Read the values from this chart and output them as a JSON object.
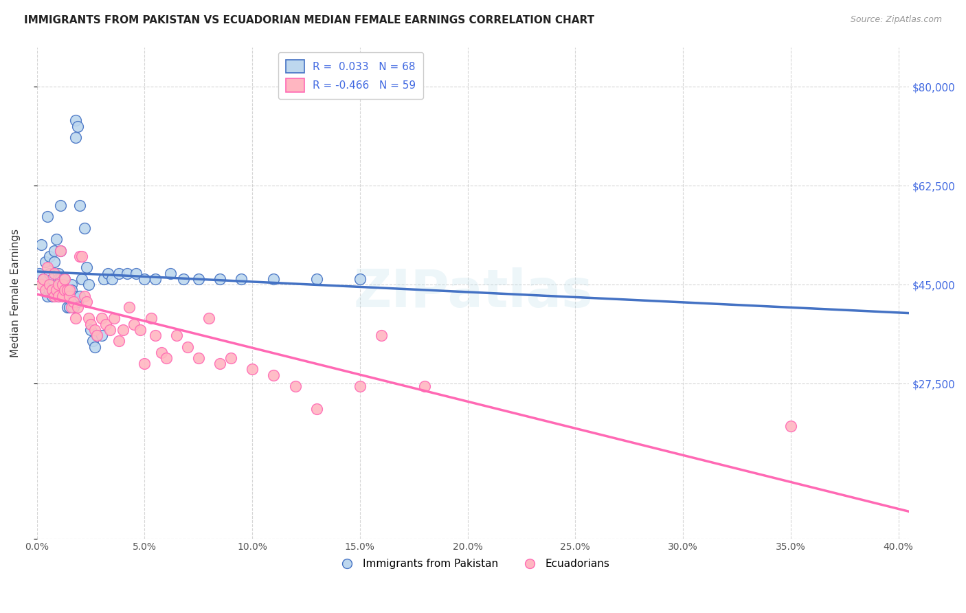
{
  "title": "IMMIGRANTS FROM PAKISTAN VS ECUADORIAN MEDIAN FEMALE EARNINGS CORRELATION CHART",
  "source": "Source: ZipAtlas.com",
  "ylabel": "Median Female Earnings",
  "y_ticks": [
    0,
    27500,
    45000,
    62500,
    80000
  ],
  "y_tick_labels": [
    "",
    "$27,500",
    "$45,000",
    "$62,500",
    "$80,000"
  ],
  "xlim": [
    0.0,
    0.405
  ],
  "ylim": [
    5000,
    87000
  ],
  "legend_line1": "R =  0.033   N = 68",
  "legend_line2": "R = -0.466   N = 59",
  "color_blue_fill": "#BDD7EE",
  "color_blue_edge": "#4472C4",
  "color_pink_fill": "#FFB6C1",
  "color_pink_edge": "#FF69B4",
  "color_line_blue": "#4472C4",
  "color_line_pink": "#FF69B4",
  "watermark": "ZIPatlas",
  "pakistan_x": [
    0.001,
    0.002,
    0.003,
    0.004,
    0.004,
    0.005,
    0.005,
    0.006,
    0.006,
    0.006,
    0.007,
    0.007,
    0.008,
    0.008,
    0.008,
    0.009,
    0.009,
    0.01,
    0.01,
    0.01,
    0.01,
    0.011,
    0.011,
    0.011,
    0.012,
    0.012,
    0.013,
    0.013,
    0.014,
    0.014,
    0.015,
    0.015,
    0.016,
    0.016,
    0.016,
    0.017,
    0.017,
    0.018,
    0.018,
    0.019,
    0.019,
    0.02,
    0.02,
    0.021,
    0.022,
    0.023,
    0.024,
    0.025,
    0.026,
    0.027,
    0.028,
    0.03,
    0.031,
    0.033,
    0.035,
    0.038,
    0.042,
    0.046,
    0.05,
    0.055,
    0.062,
    0.068,
    0.075,
    0.085,
    0.095,
    0.11,
    0.13,
    0.15
  ],
  "pakistan_y": [
    47000,
    52000,
    46000,
    44000,
    49000,
    57000,
    43000,
    47000,
    50000,
    44000,
    46000,
    43000,
    49000,
    44000,
    51000,
    44000,
    53000,
    43000,
    47000,
    46000,
    45000,
    59000,
    46000,
    51000,
    45000,
    44000,
    44000,
    46000,
    41000,
    44000,
    44000,
    41000,
    42000,
    45000,
    44000,
    43000,
    41000,
    71000,
    74000,
    73000,
    42000,
    59000,
    43000,
    46000,
    55000,
    48000,
    45000,
    37000,
    35000,
    34000,
    36000,
    36000,
    46000,
    47000,
    46000,
    47000,
    47000,
    47000,
    46000,
    46000,
    47000,
    46000,
    46000,
    46000,
    46000,
    46000,
    46000,
    46000
  ],
  "ecuador_x": [
    0.002,
    0.003,
    0.004,
    0.005,
    0.006,
    0.007,
    0.008,
    0.008,
    0.009,
    0.01,
    0.01,
    0.011,
    0.012,
    0.012,
    0.013,
    0.013,
    0.014,
    0.015,
    0.015,
    0.016,
    0.017,
    0.018,
    0.019,
    0.02,
    0.021,
    0.022,
    0.023,
    0.024,
    0.025,
    0.027,
    0.028,
    0.03,
    0.032,
    0.034,
    0.036,
    0.038,
    0.04,
    0.043,
    0.045,
    0.048,
    0.05,
    0.053,
    0.055,
    0.058,
    0.06,
    0.065,
    0.07,
    0.075,
    0.08,
    0.085,
    0.09,
    0.1,
    0.11,
    0.12,
    0.13,
    0.15,
    0.16,
    0.18,
    0.35
  ],
  "ecuador_y": [
    45000,
    46000,
    44000,
    48000,
    45000,
    44000,
    47000,
    43000,
    44000,
    45000,
    43000,
    51000,
    43000,
    45000,
    44000,
    46000,
    44000,
    43000,
    44000,
    41000,
    42000,
    39000,
    41000,
    50000,
    50000,
    43000,
    42000,
    39000,
    38000,
    37000,
    36000,
    39000,
    38000,
    37000,
    39000,
    35000,
    37000,
    41000,
    38000,
    37000,
    31000,
    39000,
    36000,
    33000,
    32000,
    36000,
    34000,
    32000,
    39000,
    31000,
    32000,
    30000,
    29000,
    27000,
    23000,
    27000,
    36000,
    27000,
    20000
  ]
}
